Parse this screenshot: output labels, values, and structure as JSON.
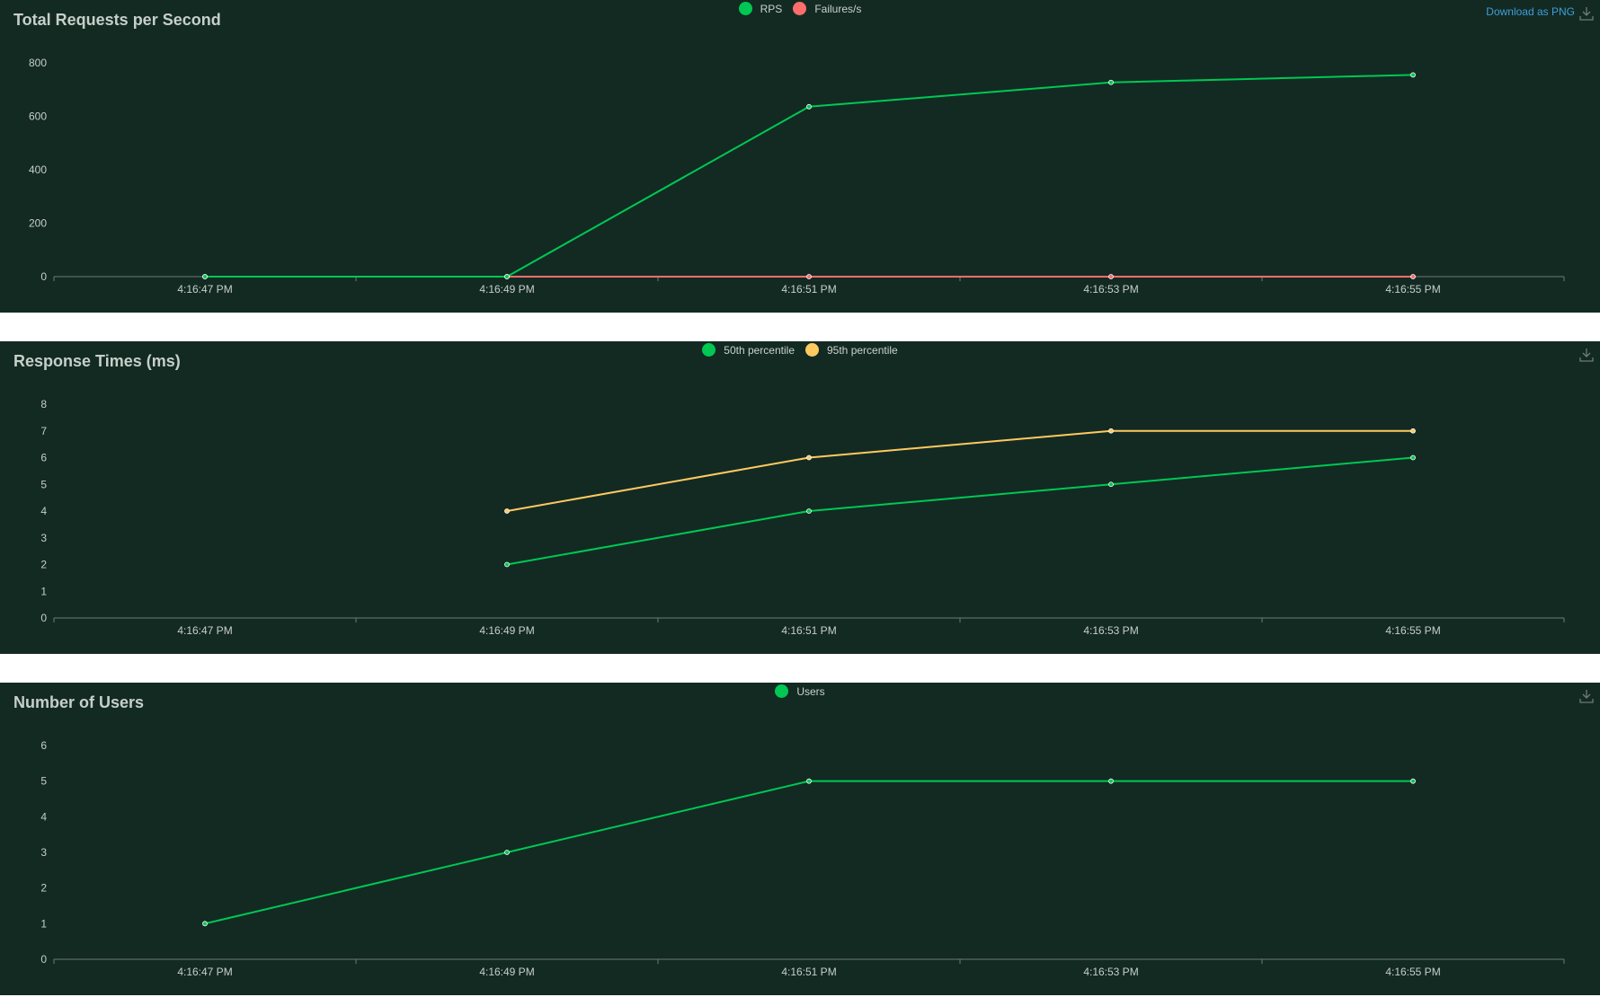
{
  "download_label": "Download as PNG",
  "icons": {
    "download": "download-icon"
  },
  "chart_data": [
    {
      "id": "rps",
      "type": "line",
      "title": "Total Requests per Second",
      "x": [
        "4:16:47 PM",
        "4:16:49 PM",
        "4:16:51 PM",
        "4:16:53 PM",
        "4:16:55 PM"
      ],
      "x_ticks": [
        "4:16:47 PM",
        "4:16:49 PM",
        "4:16:51 PM",
        "4:16:53 PM",
        "4:16:55 PM"
      ],
      "y_ticks": [
        0,
        200,
        400,
        600,
        800
      ],
      "ylim": [
        0,
        800
      ],
      "legend": "top-center",
      "grid": false,
      "series": [
        {
          "name": "RPS",
          "color": "#00c853",
          "values": [
            0,
            0,
            636,
            727,
            755
          ]
        },
        {
          "name": "Failures/s",
          "color": "#ff6d6d",
          "values": [
            0,
            0,
            0,
            0,
            0
          ]
        }
      ]
    },
    {
      "id": "rt",
      "type": "line",
      "title": "Response Times (ms)",
      "x": [
        "4:16:47 PM",
        "4:16:49 PM",
        "4:16:51 PM",
        "4:16:53 PM",
        "4:16:55 PM"
      ],
      "x_ticks": [
        "4:16:47 PM",
        "4:16:49 PM",
        "4:16:51 PM",
        "4:16:53 PM",
        "4:16:55 PM"
      ],
      "y_ticks": [
        0,
        1,
        2,
        3,
        4,
        5,
        6,
        7,
        8
      ],
      "ylim": [
        0,
        8
      ],
      "legend": "top-center",
      "grid": false,
      "series": [
        {
          "name": "50th percentile",
          "color": "#00c853",
          "values": [
            null,
            2,
            4,
            5,
            6
          ]
        },
        {
          "name": "95th percentile",
          "color": "#ffca5f",
          "values": [
            null,
            4,
            6,
            7,
            7
          ]
        }
      ]
    },
    {
      "id": "users",
      "type": "line",
      "title": "Number of Users",
      "x": [
        "4:16:47 PM",
        "4:16:49 PM",
        "4:16:51 PM",
        "4:16:53 PM",
        "4:16:55 PM"
      ],
      "x_ticks": [
        "4:16:47 PM",
        "4:16:49 PM",
        "4:16:51 PM",
        "4:16:53 PM",
        "4:16:55 PM"
      ],
      "y_ticks": [
        0,
        1,
        2,
        3,
        4,
        5,
        6
      ],
      "ylim": [
        0,
        6
      ],
      "legend": "top-center",
      "grid": false,
      "series": [
        {
          "name": "Users",
          "color": "#00c853",
          "values": [
            1,
            3,
            5,
            5,
            5
          ]
        }
      ]
    }
  ]
}
